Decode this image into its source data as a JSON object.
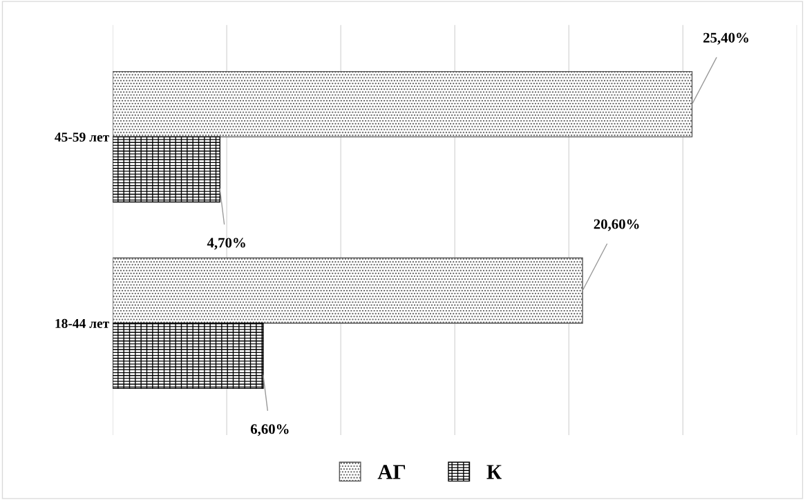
{
  "chart_data": {
    "type": "bar",
    "orientation": "horizontal",
    "categories": [
      "45-59 лет",
      "18-44 лет"
    ],
    "series": [
      {
        "name": "АГ",
        "color": "#555555",
        "values": [
          25.4,
          20.6
        ],
        "value_labels": [
          "25,40%",
          "20,60%"
        ]
      },
      {
        "name": "К",
        "color": "#000000",
        "values": [
          4.7,
          6.6
        ],
        "value_labels": [
          "4,70%",
          "6,60%"
        ]
      }
    ],
    "xlim": [
      0,
      30
    ],
    "xticks": [
      {
        "value": 0,
        "label": null
      },
      {
        "value": 5,
        "label": null
      },
      {
        "value": 10,
        "label": null
      },
      {
        "value": 15,
        "label": null
      },
      {
        "value": 20,
        "label": null
      },
      {
        "value": 25,
        "label": null
      },
      {
        "value": 30,
        "label": null
      }
    ],
    "tick_labels": "y",
    "grid": "x",
    "legend": "bottom"
  }
}
